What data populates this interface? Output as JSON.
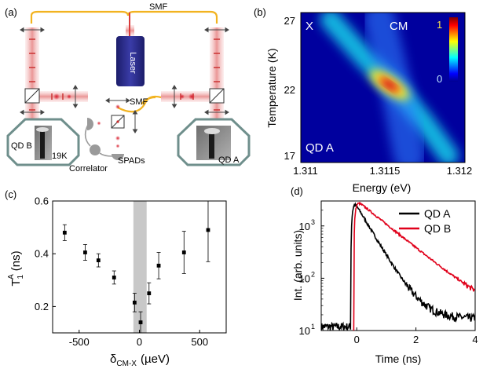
{
  "panels": {
    "a": {
      "label": "(a)",
      "smf_top": "SMF",
      "smf_mid": "SMF",
      "laser": "Laser",
      "qd_b": "QD B",
      "temp": "19K",
      "qd_a": "QD A",
      "correlator": "Correlator",
      "spads": "SPADs"
    },
    "b": {
      "label": "(b)",
      "x_mark": "X",
      "cm_mark": "CM",
      "qd_label": "QD A",
      "ylabel": "Temperature (K)",
      "xlabel": "Energy (eV)",
      "yticks": [
        "27",
        "22",
        "17"
      ],
      "xticks": [
        "1.311",
        "1.3115",
        "1.312"
      ],
      "colorbar": [
        "1",
        "0"
      ]
    },
    "c": {
      "label": "(c)",
      "ylabel_main": "T",
      "ylabel_sup": "A",
      "ylabel_sub": "1",
      "ylabel_unit": "(ns)",
      "xlabel_main": "δ",
      "xlabel_sub": "CM-X",
      "xlabel_unit": "(µeV)"
    },
    "d": {
      "label": "(d)",
      "ylabel": "Int. (arb. units)",
      "xlabel": "Time (ns)"
    }
  },
  "chart_data": [
    {
      "panel": "b",
      "type": "heatmap",
      "x_label": "Energy (eV)",
      "y_label": "Temperature (K)",
      "x_range": [
        1.311,
        1.312
      ],
      "y_range": [
        16.5,
        27.5
      ],
      "colorbar_range": [
        0,
        1
      ],
      "colormap": "jet",
      "ridges": [
        {
          "name": "X",
          "points": [
            [
              1.31118,
              27
            ],
            [
              1.3114,
              24
            ],
            [
              1.31158,
              22
            ],
            [
              1.31175,
              19.5
            ],
            [
              1.3119,
              17
            ]
          ]
        },
        {
          "name": "CM",
          "points": [
            [
              1.31148,
              27
            ],
            [
              1.31154,
              24
            ],
            [
              1.31158,
              22
            ],
            [
              1.31162,
              19.5
            ],
            [
              1.31166,
              17
            ]
          ]
        }
      ]
    },
    {
      "panel": "c",
      "type": "scatter",
      "x": [
        -620,
        -450,
        -340,
        -210,
        -40,
        10,
        80,
        160,
        370,
        570
      ],
      "y": [
        0.48,
        0.405,
        0.375,
        0.31,
        0.215,
        0.14,
        0.25,
        0.355,
        0.405,
        0.49
      ],
      "yerr": [
        0.03,
        0.03,
        0.025,
        0.025,
        0.035,
        0.04,
        0.04,
        0.05,
        0.08,
        0.12
      ],
      "xlim": [
        -720,
        720
      ],
      "ylim": [
        0.1,
        0.6
      ],
      "xticks": [
        "-500",
        "0",
        "500"
      ],
      "yticks": [
        "0.2",
        "0.4",
        "0.6"
      ],
      "shaded_band": [
        -50,
        60
      ],
      "shaded_color": "#c8c8c8"
    },
    {
      "panel": "d",
      "type": "line",
      "x_label": "Time (ns)",
      "y_label": "Int. (arb. units)",
      "y_scale": "log",
      "xlim": [
        -1.2,
        4
      ],
      "ylim": [
        10,
        3000
      ],
      "xticks": [
        "0",
        "2",
        "4"
      ],
      "yticks": [
        "10^1",
        "10^2",
        "10^3"
      ],
      "legend_position": "top-right",
      "series": [
        {
          "name": "QD A",
          "color": "#000000",
          "t0": -0.2,
          "peak": 2900,
          "tau": 0.45,
          "floor": 17,
          "noise": 0.18
        },
        {
          "name": "QD B",
          "color": "#e0001a",
          "t0": -0.1,
          "peak": 3000,
          "tau": 0.95,
          "floor": 12,
          "noise": 0.12
        }
      ]
    }
  ],
  "colors": {
    "fiber": "#f2b320",
    "beam": "#e07070",
    "laser_box": "#2b2d8c",
    "cryostat": "#6f8f8c",
    "sem": "#8a8a8a"
  }
}
